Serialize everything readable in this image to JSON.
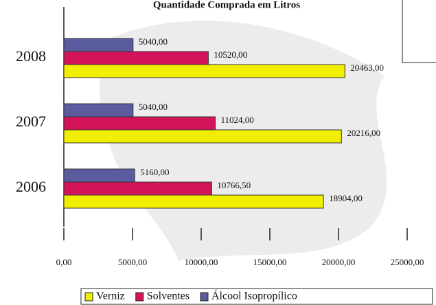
{
  "chart_data": {
    "type": "bar",
    "orientation": "horizontal",
    "title": "Quantidade Comprada em Litros",
    "categories": [
      "2008",
      "2007",
      "2006"
    ],
    "series": [
      {
        "name": "Verniz",
        "color": "#f2ee00",
        "values": [
          20463,
          20216,
          18904
        ],
        "value_labels": [
          "20463,00",
          "20216,00",
          "18904,00"
        ]
      },
      {
        "name": "Solventes",
        "color": "#d4145a",
        "values": [
          10520,
          11024,
          10766.5
        ],
        "value_labels": [
          "10520,00",
          "11024,00",
          "10766,50"
        ]
      },
      {
        "name": "Álcool Isopropílico",
        "color": "#5b5ba0",
        "values": [
          5040,
          5040,
          5160
        ],
        "value_labels": [
          "5040,00",
          "5040,00",
          "5160,00"
        ]
      }
    ],
    "xlim": [
      0,
      25000
    ],
    "xticks": [
      {
        "value": 0,
        "label": "0,00"
      },
      {
        "value": 5000,
        "label": "5000,00"
      },
      {
        "value": 10000,
        "label": "10000,00"
      },
      {
        "value": 15000,
        "label": "15000,00"
      },
      {
        "value": 20000,
        "label": "20000,00"
      },
      {
        "value": 25000,
        "label": "25000,00"
      }
    ],
    "legend": "bottom"
  }
}
